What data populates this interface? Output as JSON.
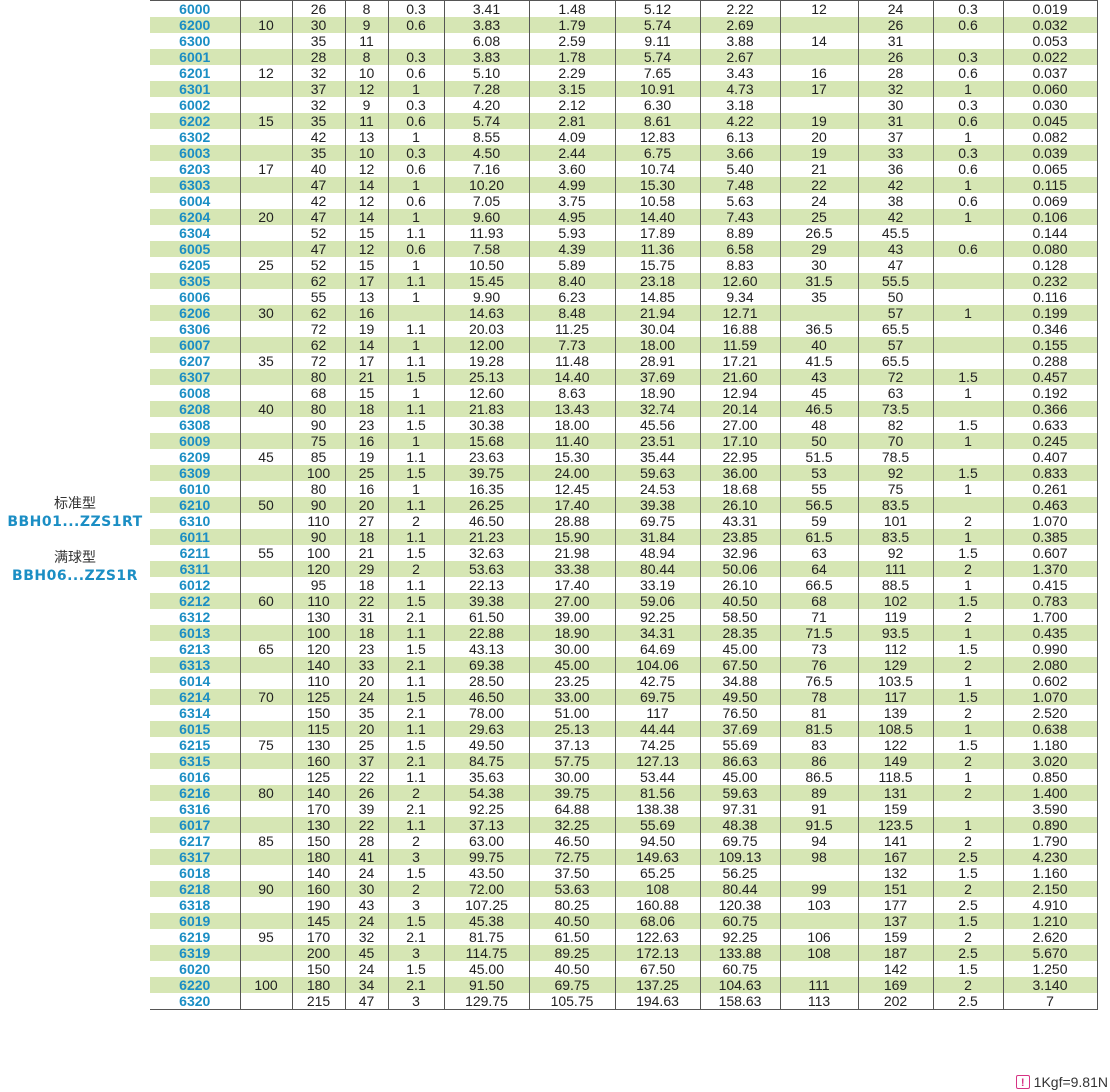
{
  "side_label": {
    "standard_cn": "标准型",
    "standard_code": "BBH01...ZZS1RT",
    "full_cn": "满球型",
    "full_code": "BBH06...ZZS1R"
  },
  "footnote": "1Kgf=9.81N",
  "rows": [
    [
      "6000",
      "",
      "26",
      "8",
      "0.3",
      "3.41",
      "1.48",
      "5.12",
      "2.22",
      "12",
      "24",
      "0.3",
      "0.019"
    ],
    [
      "6200",
      "10",
      "30",
      "9",
      "0.6",
      "3.83",
      "1.79",
      "5.74",
      "2.69",
      "",
      "26",
      "0.6",
      "0.032"
    ],
    [
      "6300",
      "",
      "35",
      "11",
      "",
      "6.08",
      "2.59",
      "9.11",
      "3.88",
      "14",
      "31",
      "",
      "0.053"
    ],
    [
      "6001",
      "",
      "28",
      "8",
      "0.3",
      "3.83",
      "1.78",
      "5.74",
      "2.67",
      "",
      "26",
      "0.3",
      "0.022"
    ],
    [
      "6201",
      "12",
      "32",
      "10",
      "0.6",
      "5.10",
      "2.29",
      "7.65",
      "3.43",
      "16",
      "28",
      "0.6",
      "0.037"
    ],
    [
      "6301",
      "",
      "37",
      "12",
      "1",
      "7.28",
      "3.15",
      "10.91",
      "4.73",
      "17",
      "32",
      "1",
      "0.060"
    ],
    [
      "6002",
      "",
      "32",
      "9",
      "0.3",
      "4.20",
      "2.12",
      "6.30",
      "3.18",
      "",
      "30",
      "0.3",
      "0.030"
    ],
    [
      "6202",
      "15",
      "35",
      "11",
      "0.6",
      "5.74",
      "2.81",
      "8.61",
      "4.22",
      "19",
      "31",
      "0.6",
      "0.045"
    ],
    [
      "6302",
      "",
      "42",
      "13",
      "1",
      "8.55",
      "4.09",
      "12.83",
      "6.13",
      "20",
      "37",
      "1",
      "0.082"
    ],
    [
      "6003",
      "",
      "35",
      "10",
      "0.3",
      "4.50",
      "2.44",
      "6.75",
      "3.66",
      "19",
      "33",
      "0.3",
      "0.039"
    ],
    [
      "6203",
      "17",
      "40",
      "12",
      "0.6",
      "7.16",
      "3.60",
      "10.74",
      "5.40",
      "21",
      "36",
      "0.6",
      "0.065"
    ],
    [
      "6303",
      "",
      "47",
      "14",
      "1",
      "10.20",
      "4.99",
      "15.30",
      "7.48",
      "22",
      "42",
      "1",
      "0.115"
    ],
    [
      "6004",
      "",
      "42",
      "12",
      "0.6",
      "7.05",
      "3.75",
      "10.58",
      "5.63",
      "24",
      "38",
      "0.6",
      "0.069"
    ],
    [
      "6204",
      "20",
      "47",
      "14",
      "1",
      "9.60",
      "4.95",
      "14.40",
      "7.43",
      "25",
      "42",
      "1",
      "0.106"
    ],
    [
      "6304",
      "",
      "52",
      "15",
      "1.1",
      "11.93",
      "5.93",
      "17.89",
      "8.89",
      "26.5",
      "45.5",
      "",
      "0.144"
    ],
    [
      "6005",
      "",
      "47",
      "12",
      "0.6",
      "7.58",
      "4.39",
      "11.36",
      "6.58",
      "29",
      "43",
      "0.6",
      "0.080"
    ],
    [
      "6205",
      "25",
      "52",
      "15",
      "1",
      "10.50",
      "5.89",
      "15.75",
      "8.83",
      "30",
      "47",
      "",
      "0.128"
    ],
    [
      "6305",
      "",
      "62",
      "17",
      "1.1",
      "15.45",
      "8.40",
      "23.18",
      "12.60",
      "31.5",
      "55.5",
      "",
      "0.232"
    ],
    [
      "6006",
      "",
      "55",
      "13",
      "1",
      "9.90",
      "6.23",
      "14.85",
      "9.34",
      "35",
      "50",
      "",
      "0.116"
    ],
    [
      "6206",
      "30",
      "62",
      "16",
      "",
      "14.63",
      "8.48",
      "21.94",
      "12.71",
      "",
      "57",
      "1",
      "0.199"
    ],
    [
      "6306",
      "",
      "72",
      "19",
      "1.1",
      "20.03",
      "11.25",
      "30.04",
      "16.88",
      "36.5",
      "65.5",
      "",
      "0.346"
    ],
    [
      "6007",
      "",
      "62",
      "14",
      "1",
      "12.00",
      "7.73",
      "18.00",
      "11.59",
      "40",
      "57",
      "",
      "0.155"
    ],
    [
      "6207",
      "35",
      "72",
      "17",
      "1.1",
      "19.28",
      "11.48",
      "28.91",
      "17.21",
      "41.5",
      "65.5",
      "",
      "0.288"
    ],
    [
      "6307",
      "",
      "80",
      "21",
      "1.5",
      "25.13",
      "14.40",
      "37.69",
      "21.60",
      "43",
      "72",
      "1.5",
      "0.457"
    ],
    [
      "6008",
      "",
      "68",
      "15",
      "1",
      "12.60",
      "8.63",
      "18.90",
      "12.94",
      "45",
      "63",
      "1",
      "0.192"
    ],
    [
      "6208",
      "40",
      "80",
      "18",
      "1.1",
      "21.83",
      "13.43",
      "32.74",
      "20.14",
      "46.5",
      "73.5",
      "",
      "0.366"
    ],
    [
      "6308",
      "",
      "90",
      "23",
      "1.5",
      "30.38",
      "18.00",
      "45.56",
      "27.00",
      "48",
      "82",
      "1.5",
      "0.633"
    ],
    [
      "6009",
      "",
      "75",
      "16",
      "1",
      "15.68",
      "11.40",
      "23.51",
      "17.10",
      "50",
      "70",
      "1",
      "0.245"
    ],
    [
      "6209",
      "45",
      "85",
      "19",
      "1.1",
      "23.63",
      "15.30",
      "35.44",
      "22.95",
      "51.5",
      "78.5",
      "",
      "0.407"
    ],
    [
      "6309",
      "",
      "100",
      "25",
      "1.5",
      "39.75",
      "24.00",
      "59.63",
      "36.00",
      "53",
      "92",
      "1.5",
      "0.833"
    ],
    [
      "6010",
      "",
      "80",
      "16",
      "1",
      "16.35",
      "12.45",
      "24.53",
      "18.68",
      "55",
      "75",
      "1",
      "0.261"
    ],
    [
      "6210",
      "50",
      "90",
      "20",
      "1.1",
      "26.25",
      "17.40",
      "39.38",
      "26.10",
      "56.5",
      "83.5",
      "",
      "0.463"
    ],
    [
      "6310",
      "",
      "110",
      "27",
      "2",
      "46.50",
      "28.88",
      "69.75",
      "43.31",
      "59",
      "101",
      "2",
      "1.070"
    ],
    [
      "6011",
      "",
      "90",
      "18",
      "1.1",
      "21.23",
      "15.90",
      "31.84",
      "23.85",
      "61.5",
      "83.5",
      "1",
      "0.385"
    ],
    [
      "6211",
      "55",
      "100",
      "21",
      "1.5",
      "32.63",
      "21.98",
      "48.94",
      "32.96",
      "63",
      "92",
      "1.5",
      "0.607"
    ],
    [
      "6311",
      "",
      "120",
      "29",
      "2",
      "53.63",
      "33.38",
      "80.44",
      "50.06",
      "64",
      "111",
      "2",
      "1.370"
    ],
    [
      "6012",
      "",
      "95",
      "18",
      "1.1",
      "22.13",
      "17.40",
      "33.19",
      "26.10",
      "66.5",
      "88.5",
      "1",
      "0.415"
    ],
    [
      "6212",
      "60",
      "110",
      "22",
      "1.5",
      "39.38",
      "27.00",
      "59.06",
      "40.50",
      "68",
      "102",
      "1.5",
      "0.783"
    ],
    [
      "6312",
      "",
      "130",
      "31",
      "2.1",
      "61.50",
      "39.00",
      "92.25",
      "58.50",
      "71",
      "119",
      "2",
      "1.700"
    ],
    [
      "6013",
      "",
      "100",
      "18",
      "1.1",
      "22.88",
      "18.90",
      "34.31",
      "28.35",
      "71.5",
      "93.5",
      "1",
      "0.435"
    ],
    [
      "6213",
      "65",
      "120",
      "23",
      "1.5",
      "43.13",
      "30.00",
      "64.69",
      "45.00",
      "73",
      "112",
      "1.5",
      "0.990"
    ],
    [
      "6313",
      "",
      "140",
      "33",
      "2.1",
      "69.38",
      "45.00",
      "104.06",
      "67.50",
      "76",
      "129",
      "2",
      "2.080"
    ],
    [
      "6014",
      "",
      "110",
      "20",
      "1.1",
      "28.50",
      "23.25",
      "42.75",
      "34.88",
      "76.5",
      "103.5",
      "1",
      "0.602"
    ],
    [
      "6214",
      "70",
      "125",
      "24",
      "1.5",
      "46.50",
      "33.00",
      "69.75",
      "49.50",
      "78",
      "117",
      "1.5",
      "1.070"
    ],
    [
      "6314",
      "",
      "150",
      "35",
      "2.1",
      "78.00",
      "51.00",
      "117",
      "76.50",
      "81",
      "139",
      "2",
      "2.520"
    ],
    [
      "6015",
      "",
      "115",
      "20",
      "1.1",
      "29.63",
      "25.13",
      "44.44",
      "37.69",
      "81.5",
      "108.5",
      "1",
      "0.638"
    ],
    [
      "6215",
      "75",
      "130",
      "25",
      "1.5",
      "49.50",
      "37.13",
      "74.25",
      "55.69",
      "83",
      "122",
      "1.5",
      "1.180"
    ],
    [
      "6315",
      "",
      "160",
      "37",
      "2.1",
      "84.75",
      "57.75",
      "127.13",
      "86.63",
      "86",
      "149",
      "2",
      "3.020"
    ],
    [
      "6016",
      "",
      "125",
      "22",
      "1.1",
      "35.63",
      "30.00",
      "53.44",
      "45.00",
      "86.5",
      "118.5",
      "1",
      "0.850"
    ],
    [
      "6216",
      "80",
      "140",
      "26",
      "2",
      "54.38",
      "39.75",
      "81.56",
      "59.63",
      "89",
      "131",
      "2",
      "1.400"
    ],
    [
      "6316",
      "",
      "170",
      "39",
      "2.1",
      "92.25",
      "64.88",
      "138.38",
      "97.31",
      "91",
      "159",
      "",
      "3.590"
    ],
    [
      "6017",
      "",
      "130",
      "22",
      "1.1",
      "37.13",
      "32.25",
      "55.69",
      "48.38",
      "91.5",
      "123.5",
      "1",
      "0.890"
    ],
    [
      "6217",
      "85",
      "150",
      "28",
      "2",
      "63.00",
      "46.50",
      "94.50",
      "69.75",
      "94",
      "141",
      "2",
      "1.790"
    ],
    [
      "6317",
      "",
      "180",
      "41",
      "3",
      "99.75",
      "72.75",
      "149.63",
      "109.13",
      "98",
      "167",
      "2.5",
      "4.230"
    ],
    [
      "6018",
      "",
      "140",
      "24",
      "1.5",
      "43.50",
      "37.50",
      "65.25",
      "56.25",
      "",
      "132",
      "1.5",
      "1.160"
    ],
    [
      "6218",
      "90",
      "160",
      "30",
      "2",
      "72.00",
      "53.63",
      "108",
      "80.44",
      "99",
      "151",
      "2",
      "2.150"
    ],
    [
      "6318",
      "",
      "190",
      "43",
      "3",
      "107.25",
      "80.25",
      "160.88",
      "120.38",
      "103",
      "177",
      "2.5",
      "4.910"
    ],
    [
      "6019",
      "",
      "145",
      "24",
      "1.5",
      "45.38",
      "40.50",
      "68.06",
      "60.75",
      "",
      "137",
      "1.5",
      "1.210"
    ],
    [
      "6219",
      "95",
      "170",
      "32",
      "2.1",
      "81.75",
      "61.50",
      "122.63",
      "92.25",
      "106",
      "159",
      "2",
      "2.620"
    ],
    [
      "6319",
      "",
      "200",
      "45",
      "3",
      "114.75",
      "89.25",
      "172.13",
      "133.88",
      "108",
      "187",
      "2.5",
      "5.670"
    ],
    [
      "6020",
      "",
      "150",
      "24",
      "1.5",
      "45.00",
      "40.50",
      "67.50",
      "60.75",
      "",
      "142",
      "1.5",
      "1.250"
    ],
    [
      "6220",
      "100",
      "180",
      "34",
      "2.1",
      "91.50",
      "69.75",
      "137.25",
      "104.63",
      "111",
      "169",
      "2",
      "3.140"
    ],
    [
      "6320",
      "",
      "215",
      "47",
      "3",
      "129.75",
      "105.75",
      "194.63",
      "158.63",
      "113",
      "202",
      "2.5",
      "7"
    ]
  ]
}
